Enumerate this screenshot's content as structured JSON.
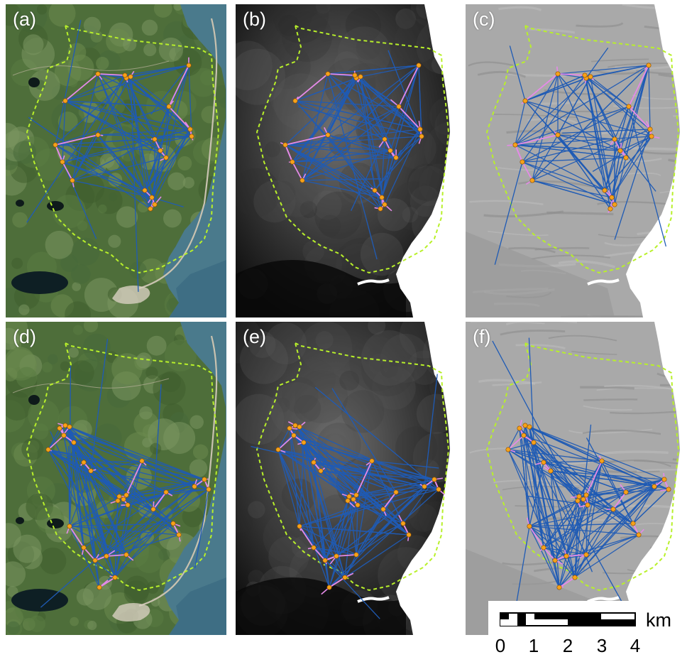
{
  "panels": [
    {
      "label": "(a)",
      "basemap": "satellite",
      "network": "top"
    },
    {
      "label": "(b)",
      "basemap": "elevation",
      "network": "top"
    },
    {
      "label": "(c)",
      "basemap": "hillshade",
      "network": "top"
    },
    {
      "label": "(d)",
      "basemap": "satellite",
      "network": "bottom"
    },
    {
      "label": "(e)",
      "basemap": "elevation",
      "network": "bottom"
    },
    {
      "label": "(f)",
      "basemap": "hillshade",
      "network": "bottom"
    }
  ],
  "colors": {
    "boundary": "#b8f02a",
    "long_links": "#1f5bb5",
    "short_links": "#e58ae8",
    "nodes": "#f5a21a",
    "node_stroke": "#8a4a00"
  },
  "scale_bar": {
    "unit": "km",
    "ticks": [
      "0",
      "1",
      "2",
      "3",
      "4"
    ]
  }
}
